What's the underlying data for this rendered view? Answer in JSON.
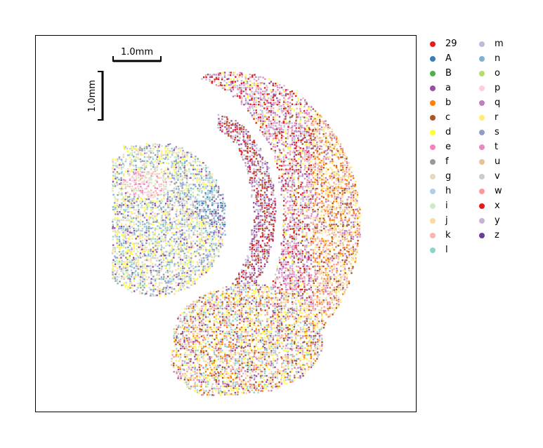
{
  "chart_data": {
    "type": "scatter",
    "title": "",
    "xlabel": "",
    "ylabel": "",
    "grid": false,
    "legend_placement": "right-outside, two columns",
    "scalebar": {
      "horizontal_label": "1.0mm",
      "vertical_label": "1.0mm",
      "length_mm": 1.0
    },
    "categories": [
      {
        "label": "29",
        "color": "#e41a1c"
      },
      {
        "label": "A",
        "color": "#377eb8"
      },
      {
        "label": "B",
        "color": "#4daf4a"
      },
      {
        "label": "a",
        "color": "#984ea3"
      },
      {
        "label": "b",
        "color": "#ff7f00"
      },
      {
        "label": "c",
        "color": "#a65628"
      },
      {
        "label": "d",
        "color": "#ffff33"
      },
      {
        "label": "e",
        "color": "#f781bf"
      },
      {
        "label": "f",
        "color": "#999999"
      },
      {
        "label": "g",
        "color": "#e5d8bd"
      },
      {
        "label": "h",
        "color": "#b3cde3"
      },
      {
        "label": "i",
        "color": "#ccebc5"
      },
      {
        "label": "j",
        "color": "#fed9a6"
      },
      {
        "label": "k",
        "color": "#fbb4ae"
      },
      {
        "label": "l",
        "color": "#8dd3c7"
      },
      {
        "label": "m",
        "color": "#bebada"
      },
      {
        "label": "n",
        "color": "#80b1d3"
      },
      {
        "label": "o",
        "color": "#b3de69"
      },
      {
        "label": "p",
        "color": "#fccde5"
      },
      {
        "label": "q",
        "color": "#bc80bd"
      },
      {
        "label": "r",
        "color": "#ffed6f"
      },
      {
        "label": "s",
        "color": "#8da0cb"
      },
      {
        "label": "t",
        "color": "#e78ac3"
      },
      {
        "label": "u",
        "color": "#e5c494"
      },
      {
        "label": "v",
        "color": "#cccccc"
      },
      {
        "label": "w",
        "color": "#fb9a99"
      },
      {
        "label": "x",
        "color": "#e31a1c"
      },
      {
        "label": "y",
        "color": "#cab2d6"
      },
      {
        "label": "z",
        "color": "#6a3d9a"
      }
    ]
  }
}
